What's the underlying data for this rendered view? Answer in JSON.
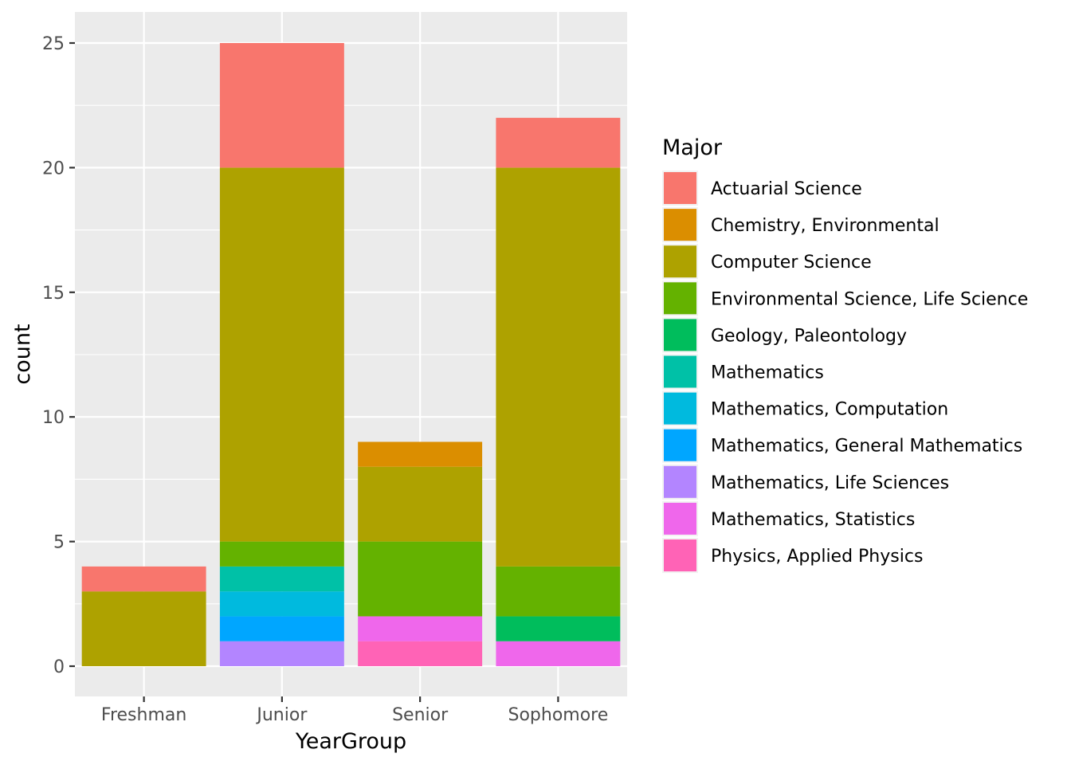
{
  "chart_data": {
    "type": "bar",
    "stacked": true,
    "xlabel": "YearGroup",
    "ylabel": "count",
    "categories": [
      "Freshman",
      "Junior",
      "Senior",
      "Sophomore"
    ],
    "ylim": [
      0,
      26.2
    ],
    "yticks": [
      0,
      5,
      10,
      15,
      20,
      25
    ],
    "grid": true,
    "legend": {
      "title": "Major",
      "position": "right"
    },
    "series": [
      {
        "name": "Actuarial Science",
        "color": "#F8766D",
        "values": [
          1,
          5,
          0,
          2
        ]
      },
      {
        "name": "Chemistry, Environmental",
        "color": "#DB8E00",
        "values": [
          0,
          0,
          1,
          0
        ]
      },
      {
        "name": "Computer Science",
        "color": "#AEA200",
        "values": [
          3,
          15,
          3,
          16
        ]
      },
      {
        "name": "Environmental Science, Life Science",
        "color": "#64B200",
        "values": [
          0,
          1,
          3,
          2
        ]
      },
      {
        "name": "Geology, Paleontology",
        "color": "#00BD5C",
        "values": [
          0,
          0,
          0,
          1
        ]
      },
      {
        "name": "Mathematics",
        "color": "#00C1A7",
        "values": [
          0,
          1,
          0,
          0
        ]
      },
      {
        "name": "Mathematics, Computation",
        "color": "#00BADE",
        "values": [
          0,
          1,
          0,
          0
        ]
      },
      {
        "name": "Mathematics, General Mathematics",
        "color": "#00A6FF",
        "values": [
          0,
          1,
          0,
          0
        ]
      },
      {
        "name": "Mathematics, Life Sciences",
        "color": "#B385FF",
        "values": [
          0,
          1,
          0,
          0
        ]
      },
      {
        "name": "Mathematics, Statistics",
        "color": "#EF67EB",
        "values": [
          0,
          0,
          1,
          1
        ]
      },
      {
        "name": "Physics, Applied Physics",
        "color": "#FF63B6",
        "values": [
          0,
          0,
          1,
          0
        ]
      }
    ]
  }
}
